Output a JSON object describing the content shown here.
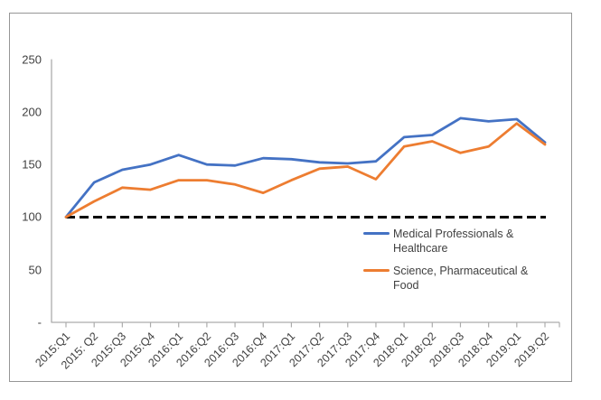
{
  "chart_data": {
    "type": "line",
    "title": "",
    "categories": [
      "2015:Q1",
      "2015: Q2",
      "2015:Q3",
      "2015:Q4",
      "2016:Q1",
      "2016:Q2",
      "2016:Q3",
      "2016:Q4",
      "2017:Q1",
      "2017:Q2",
      "2017:Q3",
      "2017:Q4",
      "2018:Q1",
      "2018:Q2",
      "2018:Q3",
      "2018:Q4",
      "2019:Q1",
      "2019:Q2"
    ],
    "series": [
      {
        "name": "Medical Professionals & Healthcare",
        "color": "#4472C4",
        "values": [
          100,
          133,
          145,
          150,
          159,
          150,
          149,
          156,
          155,
          152,
          151,
          153,
          176,
          178,
          194,
          191,
          193,
          171
        ]
      },
      {
        "name": "Science, Pharmaceutical & Food",
        "color": "#ED7D31",
        "values": [
          100,
          115,
          128,
          126,
          135,
          135,
          131,
          123,
          135,
          146,
          148,
          136,
          167,
          172,
          161,
          167,
          189,
          169
        ]
      }
    ],
    "baseline": {
      "value": 100,
      "color": "#000000",
      "style": "dashed"
    },
    "y_axis": {
      "tick_labels": [
        "250",
        "200",
        "150",
        "100",
        "50",
        "-"
      ],
      "tick_values": [
        250,
        200,
        150,
        100,
        50,
        0
      ],
      "min": 0,
      "max": 250
    },
    "x_axis": {
      "label_rotation_deg": 45
    },
    "legend": {
      "position": "inside-right"
    },
    "grid": false
  },
  "colors": {
    "background": "#FFFFFF",
    "frame_border": "#969696",
    "axis": "#ACACAC",
    "text": "#404040",
    "baseline": "#000000"
  }
}
